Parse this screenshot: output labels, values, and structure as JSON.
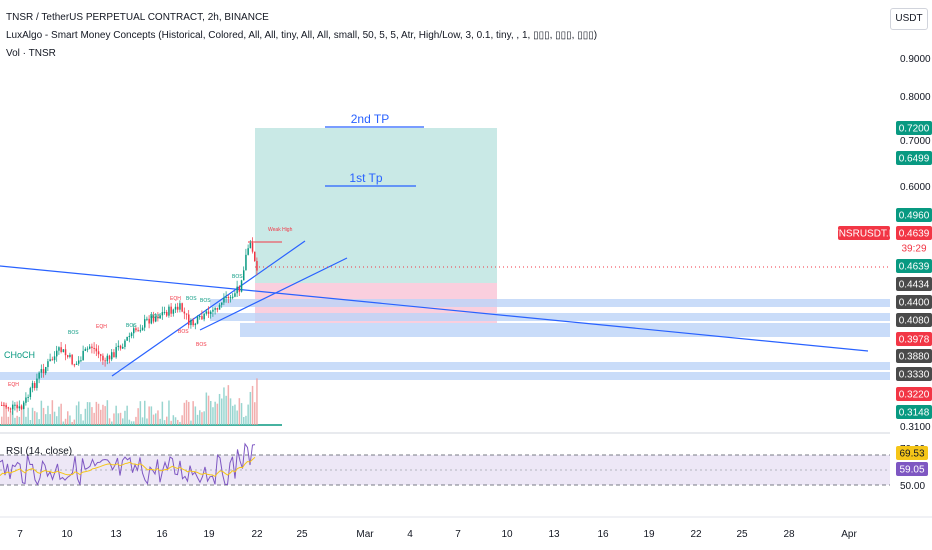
{
  "header": {
    "title": "TNSR / TetherUS PERPETUAL CONTRACT, 2h, BINANCE",
    "indicator": "LuxAlgo - Smart Money Concepts (Historical, Colored, All, All, tiny, All, All, small, 50, 5, 5, Atr, High/Low, 3, 0.1, tiny, , 1, ▯▯▯, ▯▯▯, ▯▯▯)",
    "volume": "Vol · TNSR",
    "currency": "USDT"
  },
  "price_axis": {
    "ticks": [
      "0.9000",
      "0.8000",
      "0.7000",
      "0.6000",
      "0.3100"
    ],
    "labels": [
      {
        "value": "0.7200",
        "color": "#089981"
      },
      {
        "value": "0.6499",
        "color": "#089981"
      },
      {
        "value": "0.4960",
        "color": "#089981"
      },
      {
        "value": "TNSRUSDT.P",
        "color": "#f23645"
      },
      {
        "value": "0.4639",
        "color": "#f23645"
      },
      {
        "value": "39:29",
        "color": "#f23645"
      },
      {
        "value": "0.4639",
        "color": "#089981"
      },
      {
        "value": "0.4434",
        "color": "#4a4a4a"
      },
      {
        "value": "0.4400",
        "color": "#4a4a4a"
      },
      {
        "value": "0.4080",
        "color": "#4a4a4a"
      },
      {
        "value": "0.3978",
        "color": "#f23645"
      },
      {
        "value": "0.3880",
        "color": "#4a4a4a"
      },
      {
        "value": "0.3330",
        "color": "#4a4a4a"
      },
      {
        "value": "0.3220",
        "color": "#f23645"
      },
      {
        "value": "0.3148",
        "color": "#089981"
      }
    ]
  },
  "rsi": {
    "label": "RSI (14, close)",
    "ticks": [
      "70.00",
      "50.00"
    ],
    "value_labels": [
      {
        "value": "69.53",
        "color": "#f5c518"
      },
      {
        "value": "59.05",
        "color": "#7e57c2"
      }
    ]
  },
  "time_axis": [
    "7",
    "10",
    "13",
    "16",
    "19",
    "22",
    "25",
    "Mar",
    "4",
    "7",
    "10",
    "13",
    "16",
    "19",
    "22",
    "25",
    "28",
    "Apr"
  ],
  "annotations": {
    "tp2": "2nd TP",
    "tp1": "1st Tp",
    "weak_high": "Weak High",
    "choch": "CHoCH",
    "bos": "BOS",
    "eqh": "EQH",
    "eql": "EQL"
  },
  "colors": {
    "up": "#089981",
    "down": "#f23645",
    "target_zone": "#b2dfdb",
    "stop_zone": "#f8bbd0",
    "fvg": "#bbd3f7",
    "trendline": "#2962ff",
    "rsi_band": "#ede7f6"
  }
}
